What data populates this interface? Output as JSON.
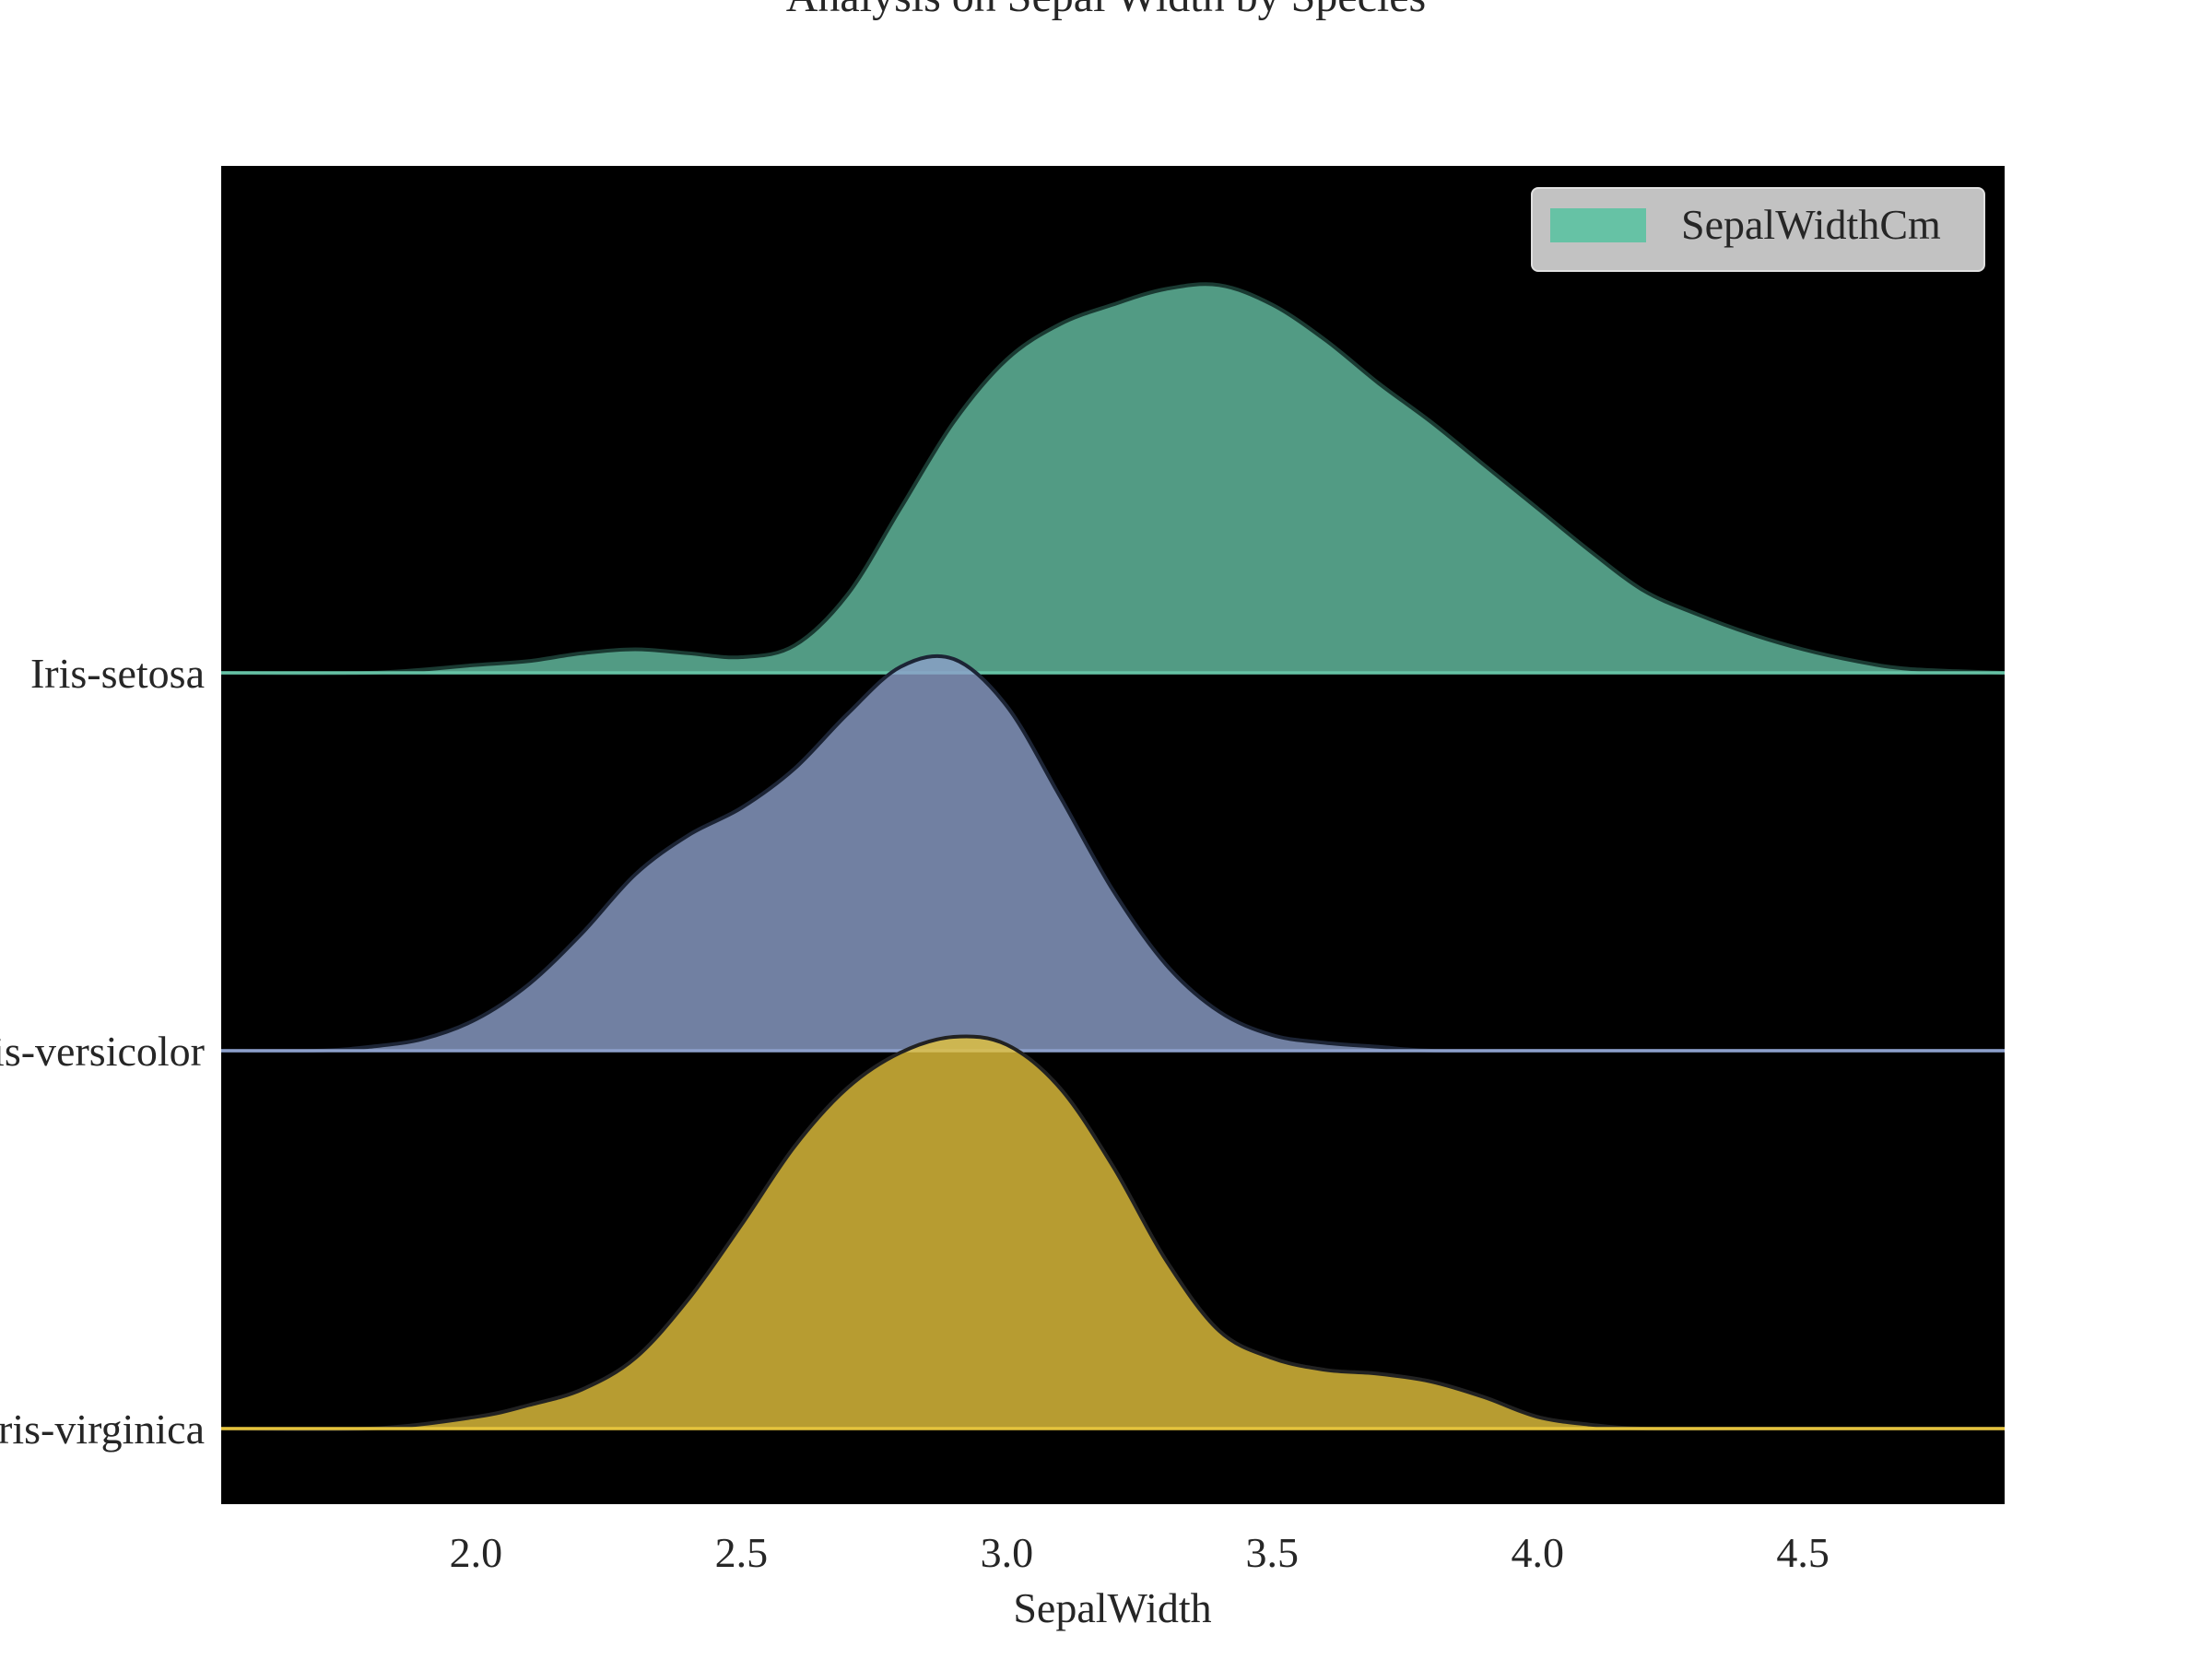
{
  "chart_data": {
    "type": "area",
    "subtype": "ridgeline",
    "title": "Analysis on Sepal Width by Species",
    "xlabel": "SepalWidth",
    "ylabel": "",
    "xlim": [
      1.52,
      4.88
    ],
    "xticks": [
      2.0,
      2.5,
      3.0,
      3.5,
      4.0,
      4.5
    ],
    "xtick_labels": [
      "2.0",
      "2.5",
      "3.0",
      "3.5",
      "4.0",
      "4.5"
    ],
    "background": "#000000",
    "legend": {
      "position": "top-right",
      "entries": [
        "SepalWidthCm"
      ],
      "colors": [
        "#66c2a5"
      ]
    },
    "series": [
      {
        "name": "Iris-setosa",
        "color": "#66c2a5",
        "x": [
          1.52,
          1.8,
          2.0,
          2.1,
          2.2,
          2.3,
          2.4,
          2.5,
          2.6,
          2.7,
          2.8,
          2.9,
          3.0,
          3.1,
          3.2,
          3.3,
          3.4,
          3.5,
          3.6,
          3.7,
          3.8,
          3.9,
          4.0,
          4.1,
          4.2,
          4.3,
          4.4,
          4.5,
          4.6,
          4.7,
          4.88
        ],
        "density": [
          0.0,
          0.0,
          0.02,
          0.03,
          0.05,
          0.06,
          0.05,
          0.04,
          0.07,
          0.2,
          0.42,
          0.64,
          0.8,
          0.89,
          0.94,
          0.98,
          0.99,
          0.94,
          0.85,
          0.74,
          0.64,
          0.53,
          0.42,
          0.31,
          0.21,
          0.15,
          0.1,
          0.06,
          0.03,
          0.01,
          0.0
        ]
      },
      {
        "name": "Iris-versicolor",
        "color": "#8da0cb",
        "x": [
          1.52,
          1.7,
          1.8,
          1.9,
          2.0,
          2.1,
          2.2,
          2.3,
          2.4,
          2.5,
          2.6,
          2.7,
          2.8,
          2.9,
          3.0,
          3.1,
          3.2,
          3.3,
          3.4,
          3.5,
          3.6,
          3.7,
          3.8,
          4.0,
          4.2,
          4.88
        ],
        "density": [
          0.0,
          0.0,
          0.01,
          0.03,
          0.08,
          0.17,
          0.3,
          0.45,
          0.55,
          0.62,
          0.72,
          0.86,
          0.98,
          1.0,
          0.88,
          0.65,
          0.41,
          0.22,
          0.1,
          0.04,
          0.02,
          0.01,
          0.0,
          0.0,
          0.0,
          0.0
        ]
      },
      {
        "name": "Iris-virginica",
        "color": "#e5c33d",
        "x": [
          1.52,
          1.8,
          2.0,
          2.1,
          2.2,
          2.3,
          2.4,
          2.5,
          2.6,
          2.7,
          2.8,
          2.9,
          3.0,
          3.1,
          3.2,
          3.3,
          3.4,
          3.5,
          3.6,
          3.7,
          3.8,
          3.9,
          4.0,
          4.1,
          4.2,
          4.4,
          4.88
        ],
        "density": [
          0.0,
          0.0,
          0.03,
          0.06,
          0.1,
          0.18,
          0.33,
          0.52,
          0.72,
          0.87,
          0.96,
          1.0,
          0.98,
          0.87,
          0.67,
          0.43,
          0.25,
          0.18,
          0.15,
          0.14,
          0.12,
          0.08,
          0.03,
          0.01,
          0.0,
          0.0,
          0.0
        ]
      }
    ]
  }
}
